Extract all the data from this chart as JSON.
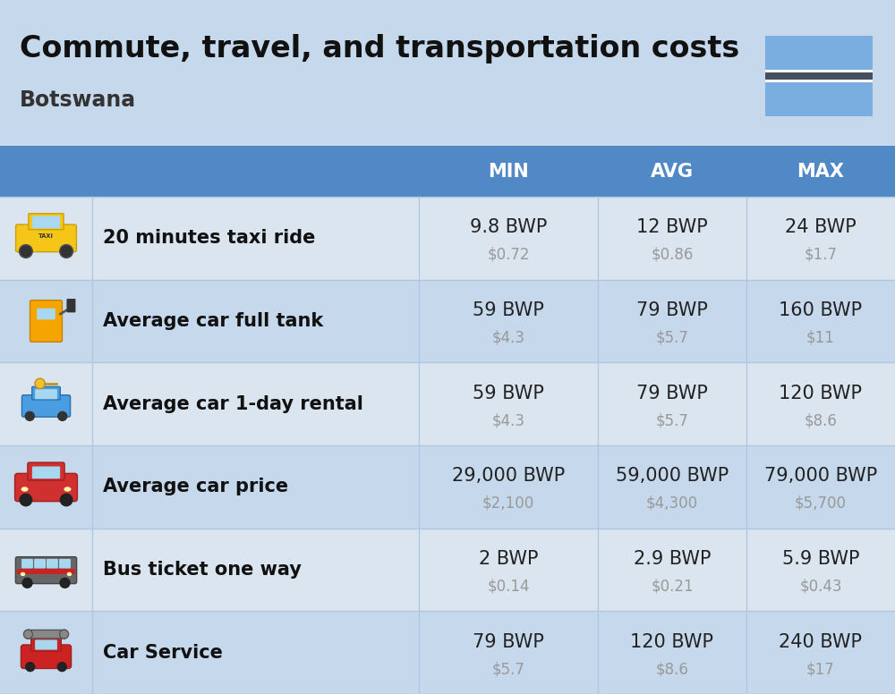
{
  "title": "Commute, travel, and transportation costs",
  "subtitle": "Botswana",
  "background_color": "#c5d8ec",
  "header_bg_color": "#5089c6",
  "header_text_color": "#ffffff",
  "row_bg_light": "#dae5f0",
  "row_bg_dark": "#c5d8ec",
  "col_headers": [
    "MIN",
    "AVG",
    "MAX"
  ],
  "rows": [
    {
      "label": "20 minutes taxi ride",
      "min_bwp": "9.8 BWP",
      "min_usd": "$0.72",
      "avg_bwp": "12 BWP",
      "avg_usd": "$0.86",
      "max_bwp": "24 BWP",
      "max_usd": "$1.7"
    },
    {
      "label": "Average car full tank",
      "min_bwp": "59 BWP",
      "min_usd": "$4.3",
      "avg_bwp": "79 BWP",
      "avg_usd": "$5.7",
      "max_bwp": "160 BWP",
      "max_usd": "$11"
    },
    {
      "label": "Average car 1-day rental",
      "min_bwp": "59 BWP",
      "min_usd": "$4.3",
      "avg_bwp": "79 BWP",
      "avg_usd": "$5.7",
      "max_bwp": "120 BWP",
      "max_usd": "$8.6"
    },
    {
      "label": "Average car price",
      "min_bwp": "29,000 BWP",
      "min_usd": "$2,100",
      "avg_bwp": "59,000 BWP",
      "avg_usd": "$4,300",
      "max_bwp": "79,000 BWP",
      "max_usd": "$5,700"
    },
    {
      "label": "Bus ticket one way",
      "min_bwp": "2 BWP",
      "min_usd": "$0.14",
      "avg_bwp": "2.9 BWP",
      "avg_usd": "$0.21",
      "max_bwp": "5.9 BWP",
      "max_usd": "$0.43"
    },
    {
      "label": "Car Service",
      "min_bwp": "79 BWP",
      "min_usd": "$5.7",
      "avg_bwp": "120 BWP",
      "avg_usd": "$8.6",
      "max_bwp": "240 BWP",
      "max_usd": "$17"
    }
  ],
  "flag_stripe_colors": [
    "#7baee0",
    "#454f5e",
    "#ffffff",
    "#7baee0"
  ],
  "title_fontsize": 24,
  "subtitle_fontsize": 17,
  "header_fontsize": 15,
  "label_fontsize": 15,
  "value_fontsize": 15,
  "usd_fontsize": 12,
  "divider_color": "#b0c8e0",
  "usd_color": "#999999",
  "label_color": "#111111",
  "value_color": "#222222"
}
